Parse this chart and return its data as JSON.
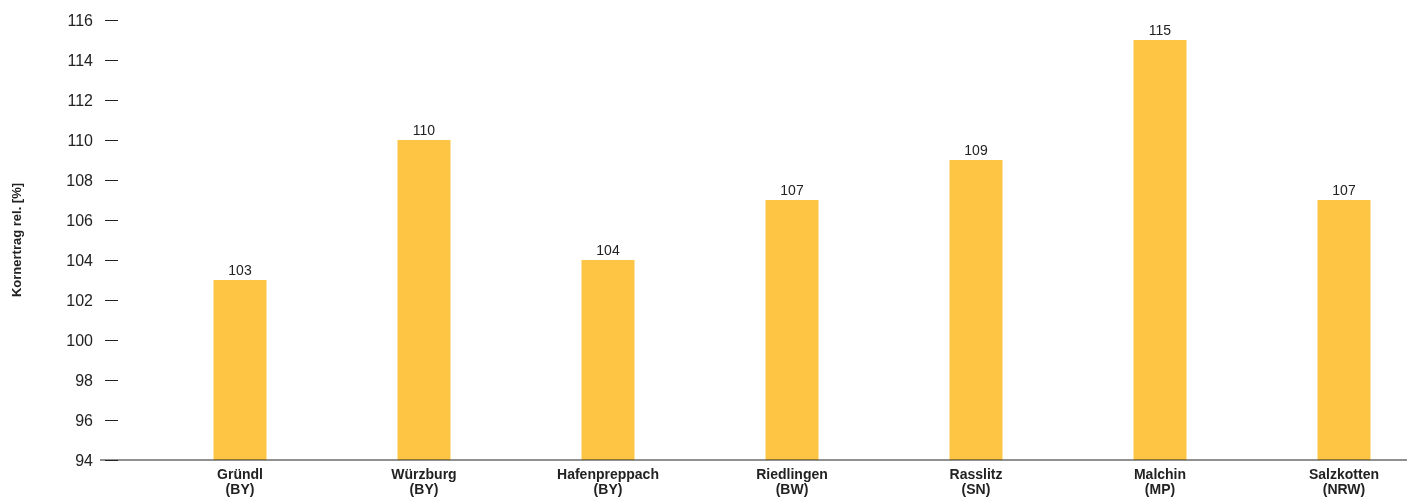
{
  "chart_data": {
    "type": "bar",
    "ylabel": "Kornertrag rel. [%]",
    "categories": [
      "Gründl\n(BY)",
      "Würzburg\n(BY)",
      "Hafenpreppach\n(BY)",
      "Riedlingen\n(BW)",
      "Rasslitz\n(SN)",
      "Malchin\n(MP)",
      "Salzkotten\n(NRW)"
    ],
    "values": [
      103,
      110,
      104,
      107,
      109,
      115,
      107
    ],
    "color": "#fdc543",
    "ylim": [
      94,
      116
    ],
    "yticks": [
      94,
      96,
      98,
      100,
      102,
      104,
      106,
      108,
      110,
      112,
      114,
      116
    ],
    "data_labels": true,
    "grid": false
  }
}
